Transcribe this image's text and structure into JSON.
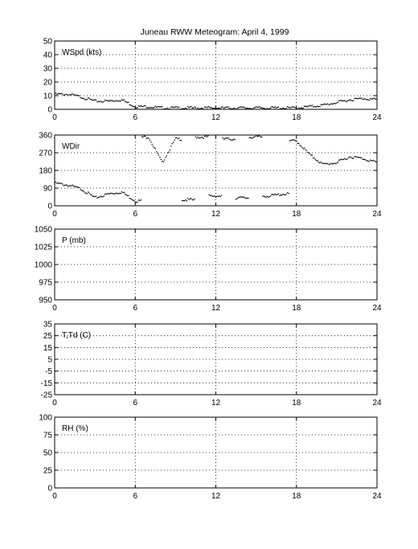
{
  "title": "Juneau RWW Meteogram:      April  4, 1999",
  "x_ticks": [
    "0",
    "6",
    "12",
    "18",
    "24"
  ],
  "chart_data": [
    {
      "type": "scatter",
      "label": "WSpd (kts)",
      "xlim": [
        0,
        24
      ],
      "ylim": [
        0,
        50
      ],
      "yticks": [
        0,
        10,
        20,
        30,
        40,
        50
      ],
      "xticks": [
        0,
        6,
        12,
        18,
        24
      ],
      "grid": true,
      "series": [
        {
          "x": [
            0,
            1,
            2,
            3,
            4,
            5,
            6,
            7,
            8,
            9,
            10,
            11,
            12,
            13,
            14,
            15,
            16,
            17,
            18,
            19,
            20,
            21,
            22,
            23,
            24
          ],
          "y": [
            11,
            11,
            9,
            6,
            6,
            7,
            2,
            2,
            1,
            1,
            1,
            1,
            1,
            1,
            1,
            1,
            1,
            1,
            1,
            2,
            3,
            5,
            7,
            8,
            7
          ]
        }
      ]
    },
    {
      "type": "scatter",
      "label": "WDir",
      "xlim": [
        0,
        24
      ],
      "ylim": [
        0,
        360
      ],
      "yticks": [
        0,
        90,
        180,
        270,
        360
      ],
      "xticks": [
        0,
        6,
        12,
        18,
        24
      ],
      "grid": true,
      "series": [
        {
          "x": [
            0,
            1,
            2,
            3,
            4,
            5,
            6,
            7,
            8,
            9,
            10,
            11,
            12,
            13,
            14,
            15,
            16,
            17,
            18,
            19,
            20,
            21,
            22,
            23,
            24
          ],
          "y": [
            115,
            105,
            85,
            40,
            60,
            70,
            25,
            350,
            220,
            340,
            30,
            350,
            50,
            340,
            40,
            350,
            50,
            60,
            330,
            260,
            210,
            220,
            250,
            240,
            220
          ]
        }
      ]
    },
    {
      "type": "scatter",
      "label": "P (mb)",
      "xlim": [
        0,
        24
      ],
      "ylim": [
        950,
        1050
      ],
      "yticks": [
        950,
        975,
        1000,
        1025,
        1050
      ],
      "xticks": [
        0,
        6,
        12,
        18,
        24
      ],
      "grid": true,
      "series": []
    },
    {
      "type": "scatter",
      "label": "T,Td (C)",
      "xlim": [
        0,
        24
      ],
      "ylim": [
        -25,
        35
      ],
      "yticks": [
        -25,
        -15,
        -5,
        5,
        15,
        25,
        35
      ],
      "xticks": [
        0,
        6,
        12,
        18,
        24
      ],
      "grid": true,
      "series": []
    },
    {
      "type": "scatter",
      "label": "RH (%)",
      "xlim": [
        0,
        24
      ],
      "ylim": [
        0,
        100
      ],
      "yticks": [
        0,
        25,
        50,
        75,
        100
      ],
      "xticks": [
        0,
        6,
        12,
        18,
        24
      ],
      "grid": true,
      "series": []
    }
  ]
}
